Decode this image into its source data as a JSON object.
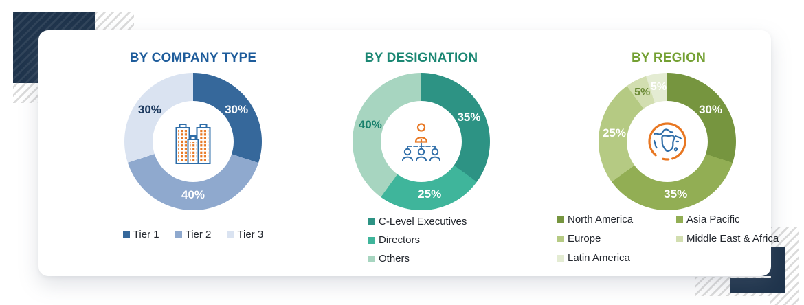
{
  "style": {
    "page_bg": "#FFFFFF",
    "card_bg": "#FFFFFF",
    "accent_navy": "#1F344C",
    "hatch_gray": "#DBDBDB",
    "icon_blue": "#2E6DA8",
    "icon_orange": "#E87722",
    "legend_text": "#23272E"
  },
  "decorations": [
    "top-left-navy-corner-block",
    "top-left-diagonal-hatch",
    "bottom-right-navy-corner-block",
    "bottom-right-diagonal-hatch"
  ],
  "chart_data": [
    {
      "type": "pie",
      "variant": "donut",
      "title": "BY COMPANY TYPE",
      "title_color": "#1E5C9B",
      "center_icon": "buildings-icon",
      "legend_layout": "single-row-centered",
      "start_angle_deg": 0,
      "direction": "clockwise",
      "value_suffix": "%",
      "slices": [
        {
          "label": "Tier 1",
          "value": 30,
          "color": "#36689B",
          "label_color": "#FFFFFF"
        },
        {
          "label": "Tier 2",
          "value": 40,
          "color": "#8FA9CE",
          "label_color": "#FFFFFF"
        },
        {
          "label": "Tier 3",
          "value": 30,
          "color": "#DAE3F1",
          "label_color": "#1D3A5F"
        }
      ]
    },
    {
      "type": "pie",
      "variant": "donut",
      "title": "BY DESIGNATION",
      "title_color": "#1B8773",
      "center_icon": "org-chart-icon",
      "legend_layout": "column-left",
      "start_angle_deg": 0,
      "direction": "clockwise",
      "value_suffix": "%",
      "slices": [
        {
          "label": "C-Level Executives",
          "value": 35,
          "color": "#2D9384",
          "label_color": "#FFFFFF"
        },
        {
          "label": "Directors",
          "value": 25,
          "color": "#3FB59B",
          "label_color": "#FFFFFF"
        },
        {
          "label": "Others",
          "value": 40,
          "color": "#A7D5C0",
          "label_color": "#17806B"
        }
      ]
    },
    {
      "type": "pie",
      "variant": "donut",
      "title": "BY REGION",
      "title_color": "#74A033",
      "center_icon": "globe-icon",
      "legend_layout": "two-column-left",
      "start_angle_deg": 0,
      "direction": "clockwise",
      "value_suffix": "%",
      "slices": [
        {
          "label": "North America",
          "value": 30,
          "color": "#76953F",
          "label_color": "#FFFFFF"
        },
        {
          "label": "Asia Pacific",
          "value": 35,
          "color": "#92AE54",
          "label_color": "#FFFFFF"
        },
        {
          "label": "Europe",
          "value": 25,
          "color": "#B5CA83",
          "label_color": "#FFFFFF"
        },
        {
          "label": "Middle East & Africa",
          "value": 5,
          "color": "#D2DEB0",
          "label_color": "#6B8A35"
        },
        {
          "label": "Latin America",
          "value": 5,
          "color": "#E4ECD3",
          "label_color": "#FFFFFF"
        }
      ]
    }
  ]
}
